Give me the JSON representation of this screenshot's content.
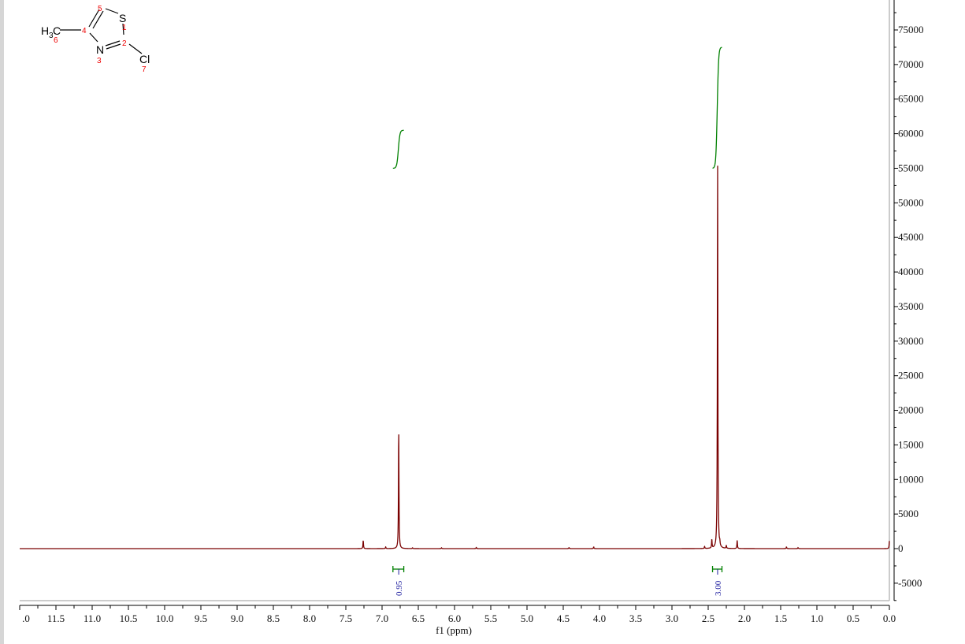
{
  "chart_data": {
    "type": "line",
    "title": "",
    "xlabel": "f1 (ppm)",
    "ylabel": "",
    "xlim": [
      12.0,
      0.0
    ],
    "ylim": [
      -7500,
      79000
    ],
    "x_reversed": true,
    "grid": false,
    "x_ticks": [
      ".0",
      "11.5",
      "11.0",
      "10.5",
      "10.0",
      "9.5",
      "9.0",
      "8.5",
      "8.0",
      "7.5",
      "7.0",
      "6.5",
      "6.0",
      "5.5",
      "5.0",
      "4.5",
      "4.0",
      "3.5",
      "3.0",
      "2.5",
      "2.0",
      "1.5",
      "1.0",
      "0.5",
      "0.0"
    ],
    "x_tick_values": [
      12.0,
      11.5,
      11.0,
      10.5,
      10.0,
      9.5,
      9.0,
      8.5,
      8.0,
      7.5,
      7.0,
      6.5,
      6.0,
      5.5,
      5.0,
      4.5,
      4.0,
      3.5,
      3.0,
      2.5,
      2.0,
      1.5,
      1.0,
      0.5,
      0.0
    ],
    "y_ticks": [
      "75000",
      "70000",
      "65000",
      "60000",
      "55000",
      "50000",
      "45000",
      "40000",
      "35000",
      "30000",
      "25000",
      "20000",
      "15000",
      "10000",
      "5000",
      "0",
      "-5000"
    ],
    "y_tick_values": [
      75000,
      70000,
      65000,
      60000,
      55000,
      50000,
      45000,
      40000,
      35000,
      30000,
      25000,
      20000,
      15000,
      10000,
      5000,
      0,
      -5000
    ],
    "peaks": [
      {
        "ppm": 7.26,
        "height": 1200
      },
      {
        "ppm": 6.95,
        "height": 250
      },
      {
        "ppm": 6.77,
        "height": 17500
      },
      {
        "ppm": 6.58,
        "height": 120
      },
      {
        "ppm": 6.18,
        "height": 120
      },
      {
        "ppm": 5.7,
        "height": 180
      },
      {
        "ppm": 4.42,
        "height": 150
      },
      {
        "ppm": 4.08,
        "height": 250
      },
      {
        "ppm": 2.55,
        "height": 300
      },
      {
        "ppm": 2.45,
        "height": 1300
      },
      {
        "ppm": 2.37,
        "height": 56000
      },
      {
        "ppm": 2.34,
        "height": 500
      },
      {
        "ppm": 2.25,
        "height": 450
      },
      {
        "ppm": 2.1,
        "height": 1200
      },
      {
        "ppm": 1.42,
        "height": 250
      },
      {
        "ppm": 1.26,
        "height": 150
      },
      {
        "ppm": 0.0,
        "height": 1100
      }
    ],
    "integrals": [
      {
        "from_ppm": 6.85,
        "to_ppm": 6.7,
        "center_ppm": 6.77,
        "label": "0.95",
        "curve_start": 55000,
        "curve_end": 60500
      },
      {
        "from_ppm": 2.44,
        "to_ppm": 2.31,
        "center_ppm": 2.37,
        "label": "3.00",
        "curve_start": 55000,
        "curve_end": 72500
      }
    ],
    "colors": {
      "spectrum": "#7a0000",
      "integral": "#008000",
      "integral_label": "#2020a0",
      "axis": "#000000"
    }
  },
  "molecule": {
    "atoms": {
      "S": "S",
      "N": "N",
      "Cl": "Cl",
      "CH3": "H",
      "CH3_sub": "3",
      "CH3_C": "C"
    },
    "numbers": {
      "n1": "1",
      "n2": "2",
      "n3": "3",
      "n4": "4",
      "n5": "5",
      "n6": "6",
      "n7": "7"
    }
  }
}
